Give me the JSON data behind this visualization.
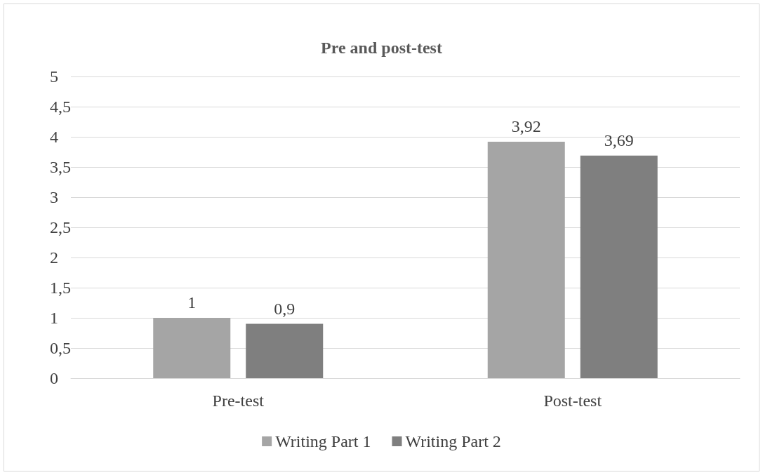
{
  "chart_data": {
    "type": "bar",
    "title": "Pre and post-test",
    "categories": [
      "Pre-test",
      "Post-test"
    ],
    "series": [
      {
        "name": "Writing Part 1",
        "color": "#a5a5a5",
        "values": [
          1,
          3.92
        ],
        "value_labels": [
          "1",
          "3,92"
        ]
      },
      {
        "name": "Writing Part 2",
        "color": "#7f7f7f",
        "values": [
          0.9,
          3.69
        ],
        "value_labels": [
          "0,9",
          "3,69"
        ]
      }
    ],
    "ylim": [
      0,
      5
    ],
    "yticks": [
      0,
      {
        "value": 0.5,
        "label": "0,5"
      },
      1,
      {
        "value": 1.5,
        "label": "1,5"
      },
      2,
      {
        "value": 2.5,
        "label": "2,5"
      },
      3,
      {
        "value": 3.5,
        "label": "3,5"
      },
      4,
      {
        "value": 4.5,
        "label": "4,5"
      },
      5
    ],
    "grid": "y",
    "legend": "bottom"
  }
}
